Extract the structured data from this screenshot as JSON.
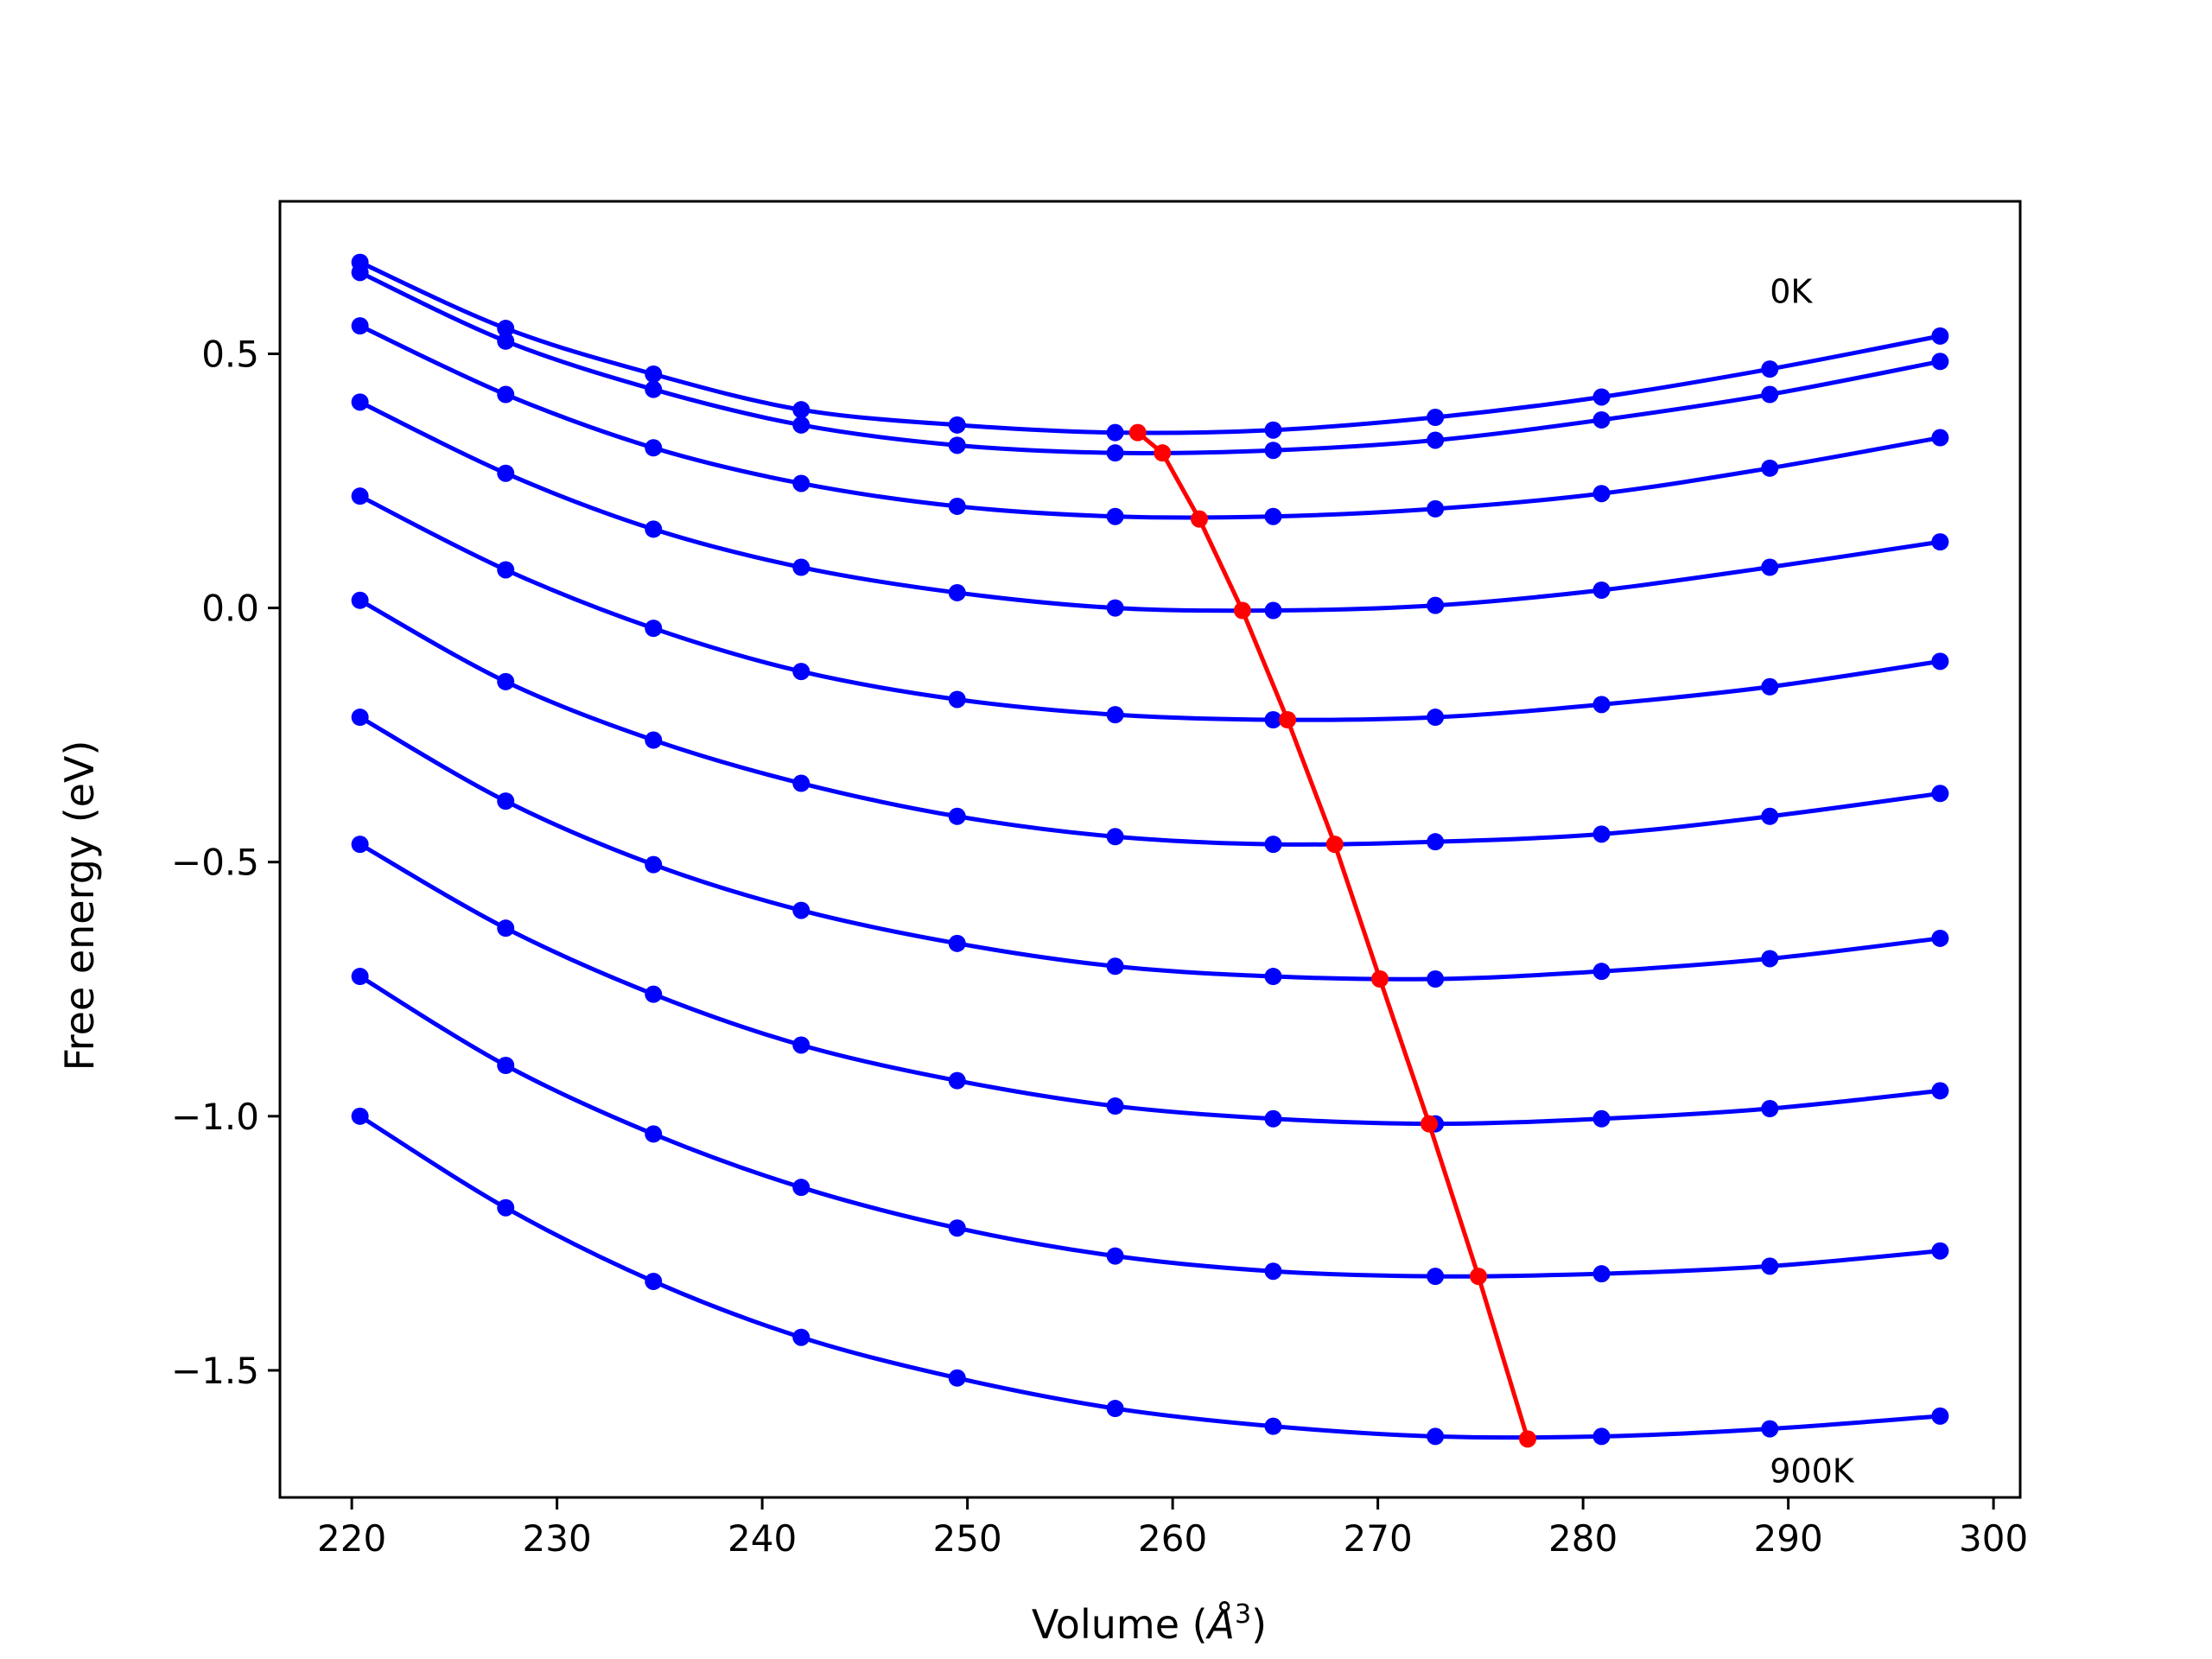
{
  "chart_data": {
    "type": "line",
    "title": "",
    "xlabel": "Volume (Å³)",
    "xlabel_main": "Volume (",
    "xlabel_unit": "Å",
    "xlabel_sup": "3",
    "xlabel_close": ")",
    "ylabel": "Free energy (eV)",
    "xlim": [
      216.5,
      301.3
    ],
    "ylim": [
      -1.75,
      0.8
    ],
    "xticks": [
      220,
      230,
      240,
      250,
      260,
      270,
      280,
      290,
      300
    ],
    "xtick_labels": [
      "220",
      "230",
      "240",
      "250",
      "260",
      "270",
      "280",
      "290",
      "300"
    ],
    "yticks": [
      -1.5,
      -1.0,
      -0.5,
      0.0,
      0.5
    ],
    "ytick_labels": [
      "−1.5",
      "−1.0",
      "−0.5",
      "0.0",
      "0.5"
    ],
    "grid": false,
    "x": [
      220.4,
      227.5,
      234.7,
      241.9,
      249.5,
      257.2,
      264.9,
      272.8,
      280.9,
      289.1,
      297.4
    ],
    "series": [
      {
        "values": [
          0.68,
          0.55,
          0.46,
          0.39,
          0.36,
          0.345,
          0.35,
          0.375,
          0.415,
          0.47,
          0.535
        ]
      },
      {
        "values": [
          0.66,
          0.525,
          0.43,
          0.36,
          0.32,
          0.305,
          0.31,
          0.33,
          0.37,
          0.42,
          0.485
        ]
      },
      {
        "values": [
          0.555,
          0.42,
          0.315,
          0.245,
          0.2,
          0.18,
          0.18,
          0.195,
          0.225,
          0.275,
          0.335
        ]
      },
      {
        "values": [
          0.405,
          0.265,
          0.155,
          0.08,
          0.03,
          0.0,
          -0.005,
          0.005,
          0.035,
          0.08,
          0.13
        ]
      },
      {
        "values": [
          0.22,
          0.075,
          -0.04,
          -0.125,
          -0.18,
          -0.21,
          -0.22,
          -0.215,
          -0.19,
          -0.155,
          -0.105
        ]
      },
      {
        "values": [
          0.015,
          -0.145,
          -0.26,
          -0.345,
          -0.41,
          -0.45,
          -0.465,
          -0.46,
          -0.445,
          -0.41,
          -0.365
        ]
      },
      {
        "values": [
          -0.215,
          -0.38,
          -0.505,
          -0.595,
          -0.66,
          -0.705,
          -0.725,
          -0.73,
          -0.715,
          -0.69,
          -0.65
        ]
      },
      {
        "values": [
          -0.465,
          -0.63,
          -0.76,
          -0.86,
          -0.93,
          -0.98,
          -1.005,
          -1.015,
          -1.005,
          -0.985,
          -0.95
        ]
      },
      {
        "values": [
          -0.725,
          -0.9,
          -1.035,
          -1.14,
          -1.22,
          -1.275,
          -1.305,
          -1.315,
          -1.31,
          -1.295,
          -1.265
        ]
      },
      {
        "values": [
          -1.0,
          -1.18,
          -1.325,
          -1.435,
          -1.515,
          -1.575,
          -1.61,
          -1.63,
          -1.63,
          -1.615,
          -1.59
        ]
      }
    ],
    "minima": {
      "x": [
        258.3,
        259.5,
        261.3,
        263.4,
        265.6,
        267.9,
        270.1,
        272.5,
        274.9,
        277.3
      ],
      "y": [
        0.345,
        0.305,
        0.175,
        -0.005,
        -0.22,
        -0.465,
        -0.73,
        -1.015,
        -1.315,
        -1.635
      ]
    },
    "annotations": [
      {
        "text": "0K",
        "x": 289.1,
        "y": 0.6
      },
      {
        "text": "900K",
        "x": 289.1,
        "y": -1.72
      }
    ],
    "colors": {
      "series": "#0000ff",
      "minima": "#ff0000",
      "axes": "#000000"
    }
  }
}
